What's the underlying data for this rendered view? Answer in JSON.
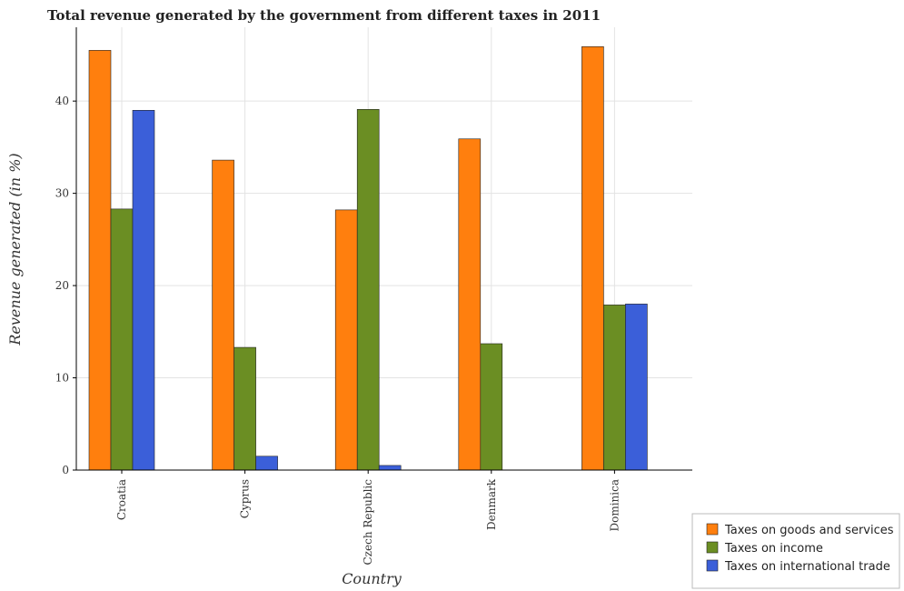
{
  "chart_data": {
    "type": "bar",
    "title": "Total revenue generated by the government from different taxes in 2011",
    "xlabel": "Country",
    "ylabel": "Revenue generated (in %)",
    "categories": [
      "Croatia",
      "Cyprus",
      "Czech Republic",
      "Denmark",
      "Dominica"
    ],
    "series": [
      {
        "name": "Taxes on goods and services",
        "color": "#ff7f0e",
        "values": [
          45.5,
          33.6,
          28.2,
          35.9,
          45.9
        ]
      },
      {
        "name": "Taxes on income",
        "color": "#6b8e23",
        "values": [
          28.3,
          13.3,
          39.1,
          13.7,
          17.9
        ]
      },
      {
        "name": "Taxes on international trade",
        "color": "#3b5fd9",
        "values": [
          39.0,
          1.5,
          0.5,
          0.0,
          18.0
        ]
      }
    ],
    "ylim": [
      0,
      48
    ],
    "yticks": [
      0,
      10,
      20,
      30,
      40
    ],
    "grid": true,
    "legend_position": "bottom-right"
  }
}
